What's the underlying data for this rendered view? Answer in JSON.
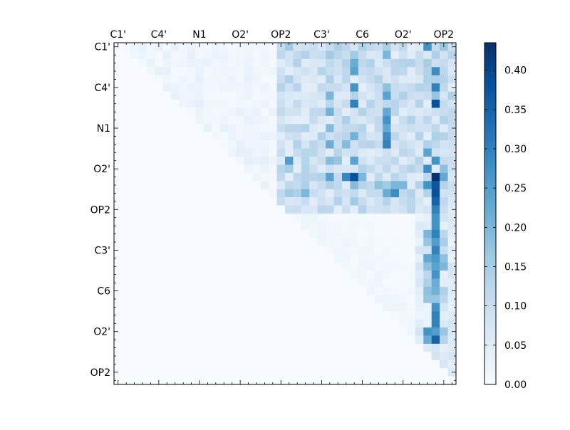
{
  "chart_data": {
    "type": "heatmap",
    "title": "",
    "xlabel": "",
    "ylabel": "",
    "n_cells": 42,
    "matrix_shape": "upper-triangular",
    "x_tick_labels": [
      "C1'",
      "C4'",
      "N1",
      "O2'",
      "OP2",
      "C3'",
      "C6",
      "O2'",
      "OP2"
    ],
    "y_tick_labels": [
      "C1'",
      "C4'",
      "N1",
      "O2'",
      "OP2",
      "C3'",
      "C6",
      "O2'",
      "OP2"
    ],
    "tick_label_positions": [
      0,
      5,
      10,
      15,
      20,
      25,
      30,
      35,
      40
    ],
    "colorbar": {
      "min": 0.0,
      "max": 0.435,
      "ticks": [
        "0.00",
        "0.05",
        "0.10",
        "0.15",
        "0.20",
        "0.25",
        "0.30",
        "0.35",
        "0.40"
      ],
      "tick_values": [
        0.0,
        0.05,
        0.1,
        0.15,
        0.2,
        0.25,
        0.3,
        0.35,
        0.4
      ],
      "colormap": "Blues",
      "colors": [
        "#f7fbff",
        "#deebf7",
        "#c6dbef",
        "#9ecae1",
        "#6baed6",
        "#4292c6",
        "#2171b5",
        "#08519c",
        "#08306b"
      ]
    },
    "cells": [
      {
        "r": 0,
        "c": 20,
        "v": 0.11
      },
      {
        "r": 0,
        "c": 21,
        "v": 0.16
      },
      {
        "r": 0,
        "c": 26,
        "v": 0.11
      },
      {
        "r": 0,
        "c": 27,
        "v": 0.14
      },
      {
        "r": 0,
        "c": 28,
        "v": 0.12
      },
      {
        "r": 0,
        "c": 33,
        "v": 0.15
      },
      {
        "r": 0,
        "c": 38,
        "v": 0.27
      },
      {
        "r": 0,
        "c": 39,
        "v": 0.11
      },
      {
        "r": 0,
        "c": 40,
        "v": 0.17
      },
      {
        "r": 1,
        "c": 26,
        "v": 0.16
      },
      {
        "r": 1,
        "c": 29,
        "v": 0.16
      },
      {
        "r": 1,
        "c": 33,
        "v": 0.2
      },
      {
        "r": 2,
        "c": 29,
        "v": 0.22
      },
      {
        "r": 2,
        "c": 38,
        "v": 0.15
      },
      {
        "r": 3,
        "c": 29,
        "v": 0.24
      },
      {
        "r": 3,
        "c": 39,
        "v": 0.28
      },
      {
        "r": 3,
        "c": 40,
        "v": 0.12
      },
      {
        "r": 4,
        "c": 21,
        "v": 0.14
      },
      {
        "r": 4,
        "c": 26,
        "v": 0.14
      },
      {
        "r": 4,
        "c": 38,
        "v": 0.14
      },
      {
        "r": 5,
        "c": 29,
        "v": 0.27
      },
      {
        "r": 5,
        "c": 33,
        "v": 0.18
      },
      {
        "r": 5,
        "c": 39,
        "v": 0.3
      },
      {
        "r": 6,
        "c": 26,
        "v": 0.2
      },
      {
        "r": 6,
        "c": 33,
        "v": 0.24
      },
      {
        "r": 6,
        "c": 39,
        "v": 0.17
      },
      {
        "r": 7,
        "c": 29,
        "v": 0.3
      },
      {
        "r": 7,
        "c": 39,
        "v": 0.38
      },
      {
        "r": 7,
        "c": 40,
        "v": 0.11
      },
      {
        "r": 8,
        "c": 26,
        "v": 0.21
      },
      {
        "r": 8,
        "c": 33,
        "v": 0.23
      },
      {
        "r": 9,
        "c": 33,
        "v": 0.27
      },
      {
        "r": 9,
        "c": 38,
        "v": 0.12
      },
      {
        "r": 10,
        "c": 26,
        "v": 0.19
      },
      {
        "r": 10,
        "c": 33,
        "v": 0.23
      },
      {
        "r": 11,
        "c": 29,
        "v": 0.21
      },
      {
        "r": 11,
        "c": 33,
        "v": 0.28
      },
      {
        "r": 11,
        "c": 39,
        "v": 0.14
      },
      {
        "r": 12,
        "c": 26,
        "v": 0.22
      },
      {
        "r": 12,
        "c": 28,
        "v": 0.19
      },
      {
        "r": 12,
        "c": 33,
        "v": 0.3
      },
      {
        "r": 13,
        "c": 38,
        "v": 0.24
      },
      {
        "r": 14,
        "c": 21,
        "v": 0.25
      },
      {
        "r": 14,
        "c": 26,
        "v": 0.19
      },
      {
        "r": 14,
        "c": 27,
        "v": 0.17
      },
      {
        "r": 14,
        "c": 29,
        "v": 0.24
      },
      {
        "r": 14,
        "c": 39,
        "v": 0.27
      },
      {
        "r": 15,
        "c": 21,
        "v": 0.15
      },
      {
        "r": 15,
        "c": 38,
        "v": 0.28
      },
      {
        "r": 15,
        "c": 40,
        "v": 0.18
      },
      {
        "r": 16,
        "c": 26,
        "v": 0.24
      },
      {
        "r": 16,
        "c": 28,
        "v": 0.29
      },
      {
        "r": 16,
        "c": 29,
        "v": 0.38
      },
      {
        "r": 16,
        "c": 30,
        "v": 0.2
      },
      {
        "r": 16,
        "c": 38,
        "v": 0.12
      },
      {
        "r": 16,
        "c": 39,
        "v": 0.43
      },
      {
        "r": 16,
        "c": 40,
        "v": 0.23
      },
      {
        "r": 17,
        "c": 23,
        "v": 0.14
      },
      {
        "r": 17,
        "c": 29,
        "v": 0.19
      },
      {
        "r": 17,
        "c": 32,
        "v": 0.18
      },
      {
        "r": 17,
        "c": 33,
        "v": 0.16
      },
      {
        "r": 17,
        "c": 34,
        "v": 0.2
      },
      {
        "r": 17,
        "c": 35,
        "v": 0.2
      },
      {
        "r": 17,
        "c": 38,
        "v": 0.27
      },
      {
        "r": 17,
        "c": 39,
        "v": 0.37
      },
      {
        "r": 18,
        "c": 21,
        "v": 0.16
      },
      {
        "r": 18,
        "c": 22,
        "v": 0.14
      },
      {
        "r": 18,
        "c": 23,
        "v": 0.2
      },
      {
        "r": 18,
        "c": 33,
        "v": 0.22
      },
      {
        "r": 18,
        "c": 34,
        "v": 0.28
      },
      {
        "r": 18,
        "c": 39,
        "v": 0.38
      },
      {
        "r": 19,
        "c": 29,
        "v": 0.16
      },
      {
        "r": 19,
        "c": 39,
        "v": 0.35
      },
      {
        "r": 20,
        "c": 39,
        "v": 0.3
      },
      {
        "r": 21,
        "c": 39,
        "v": 0.27
      },
      {
        "r": 22,
        "c": 39,
        "v": 0.27
      },
      {
        "r": 23,
        "c": 38,
        "v": 0.2
      },
      {
        "r": 23,
        "c": 39,
        "v": 0.3
      },
      {
        "r": 23,
        "c": 40,
        "v": 0.12
      },
      {
        "r": 24,
        "c": 38,
        "v": 0.17
      },
      {
        "r": 24,
        "c": 39,
        "v": 0.25
      },
      {
        "r": 24,
        "c": 40,
        "v": 0.15
      },
      {
        "r": 25,
        "c": 39,
        "v": 0.3
      },
      {
        "r": 25,
        "c": 40,
        "v": 0.1
      },
      {
        "r": 26,
        "c": 38,
        "v": 0.23
      },
      {
        "r": 26,
        "c": 39,
        "v": 0.26
      },
      {
        "r": 26,
        "c": 40,
        "v": 0.18
      },
      {
        "r": 27,
        "c": 38,
        "v": 0.18
      },
      {
        "r": 27,
        "c": 39,
        "v": 0.24
      },
      {
        "r": 27,
        "c": 40,
        "v": 0.2
      },
      {
        "r": 28,
        "c": 38,
        "v": 0.12
      },
      {
        "r": 28,
        "c": 39,
        "v": 0.27
      },
      {
        "r": 29,
        "c": 38,
        "v": 0.14
      },
      {
        "r": 29,
        "c": 39,
        "v": 0.22
      },
      {
        "r": 30,
        "c": 38,
        "v": 0.18
      },
      {
        "r": 30,
        "c": 39,
        "v": 0.21
      },
      {
        "r": 30,
        "c": 40,
        "v": 0.14
      },
      {
        "r": 31,
        "c": 38,
        "v": 0.17
      },
      {
        "r": 31,
        "c": 39,
        "v": 0.17
      },
      {
        "r": 31,
        "c": 40,
        "v": 0.12
      },
      {
        "r": 32,
        "c": 39,
        "v": 0.27
      },
      {
        "r": 33,
        "c": 39,
        "v": 0.3
      },
      {
        "r": 34,
        "c": 39,
        "v": 0.3
      },
      {
        "r": 35,
        "c": 38,
        "v": 0.27
      },
      {
        "r": 35,
        "c": 39,
        "v": 0.25
      },
      {
        "r": 35,
        "c": 40,
        "v": 0.17
      },
      {
        "r": 36,
        "c": 38,
        "v": 0.22
      },
      {
        "r": 36,
        "c": 39,
        "v": 0.35
      },
      {
        "r": 36,
        "c": 40,
        "v": 0.13
      }
    ]
  }
}
